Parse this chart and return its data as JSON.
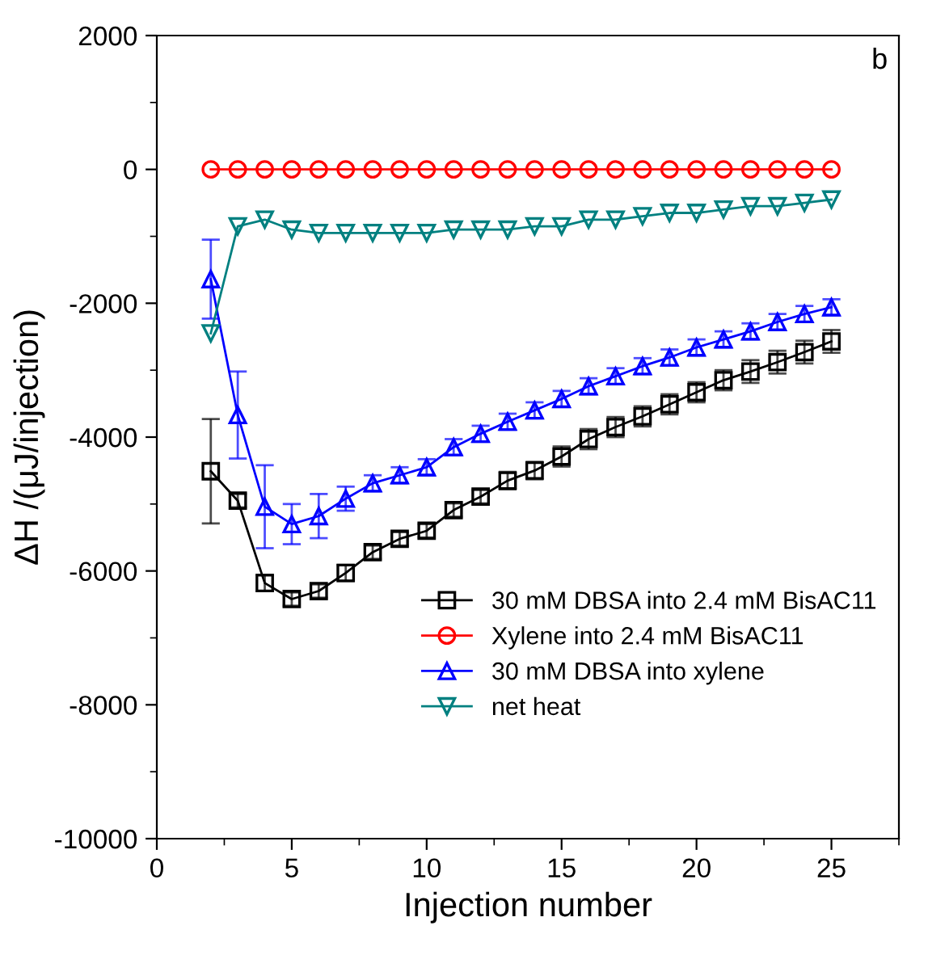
{
  "chart_data": {
    "type": "line",
    "xlabel": "Injection number",
    "ylabel": "ΔH /(μJ/injection)",
    "annotations": [
      "b"
    ],
    "x": [
      2,
      3,
      4,
      5,
      6,
      7,
      8,
      9,
      10,
      11,
      12,
      13,
      14,
      15,
      16,
      17,
      18,
      19,
      20,
      21,
      22,
      23,
      24,
      25
    ],
    "xlim": [
      0,
      27.5
    ],
    "xticks": [
      0,
      5,
      10,
      15,
      20,
      25
    ],
    "ylim": [
      -10000,
      2000
    ],
    "yticks": [
      -10000,
      -8000,
      -6000,
      -4000,
      -2000,
      0,
      2000
    ],
    "legend": "bottom right",
    "grid": false,
    "series": [
      {
        "name": "30 mM DBSA into 2.4 mM BisAC11",
        "color": "#000000",
        "marker": "square",
        "values": [
          -4510,
          -4950,
          -6180,
          -6420,
          -6300,
          -6030,
          -5720,
          -5520,
          -5400,
          -5090,
          -4890,
          -4650,
          -4500,
          -4290,
          -4030,
          -3850,
          -3690,
          -3510,
          -3330,
          -3150,
          -3020,
          -2880,
          -2730,
          -2570
        ],
        "errors": [
          780,
          100,
          120,
          100,
          100,
          120,
          100,
          100,
          100,
          100,
          100,
          130,
          130,
          150,
          150,
          150,
          150,
          150,
          150,
          150,
          170,
          170,
          170,
          170
        ]
      },
      {
        "name": "Xylene into 2.4 mM BisAC11",
        "color": "#ff0000",
        "marker": "circle",
        "values": [
          0,
          0,
          0,
          0,
          0,
          0,
          0,
          0,
          0,
          0,
          0,
          0,
          0,
          0,
          0,
          0,
          0,
          0,
          0,
          0,
          0,
          0,
          0,
          0
        ]
      },
      {
        "name": "30 mM DBSA into xylene",
        "color": "#0000ff",
        "marker": "triangle",
        "values": [
          -1640,
          -3670,
          -5040,
          -5300,
          -5180,
          -4920,
          -4690,
          -4570,
          -4450,
          -4150,
          -3950,
          -3770,
          -3600,
          -3430,
          -3240,
          -3090,
          -2940,
          -2810,
          -2660,
          -2540,
          -2420,
          -2280,
          -2160,
          -2060
        ],
        "errors": [
          590,
          650,
          620,
          300,
          330,
          180,
          120,
          120,
          120,
          120,
          120,
          120,
          120,
          120,
          120,
          120,
          120,
          120,
          120,
          120,
          120,
          120,
          120,
          120
        ]
      },
      {
        "name": "net heat",
        "color": "#008080",
        "marker": "triangle_down",
        "values": [
          -2450,
          -850,
          -750,
          -900,
          -950,
          -950,
          -950,
          -950,
          -950,
          -900,
          -900,
          -900,
          -850,
          -850,
          -750,
          -750,
          -700,
          -650,
          -650,
          -600,
          -550,
          -550,
          -500,
          -450
        ]
      }
    ]
  }
}
